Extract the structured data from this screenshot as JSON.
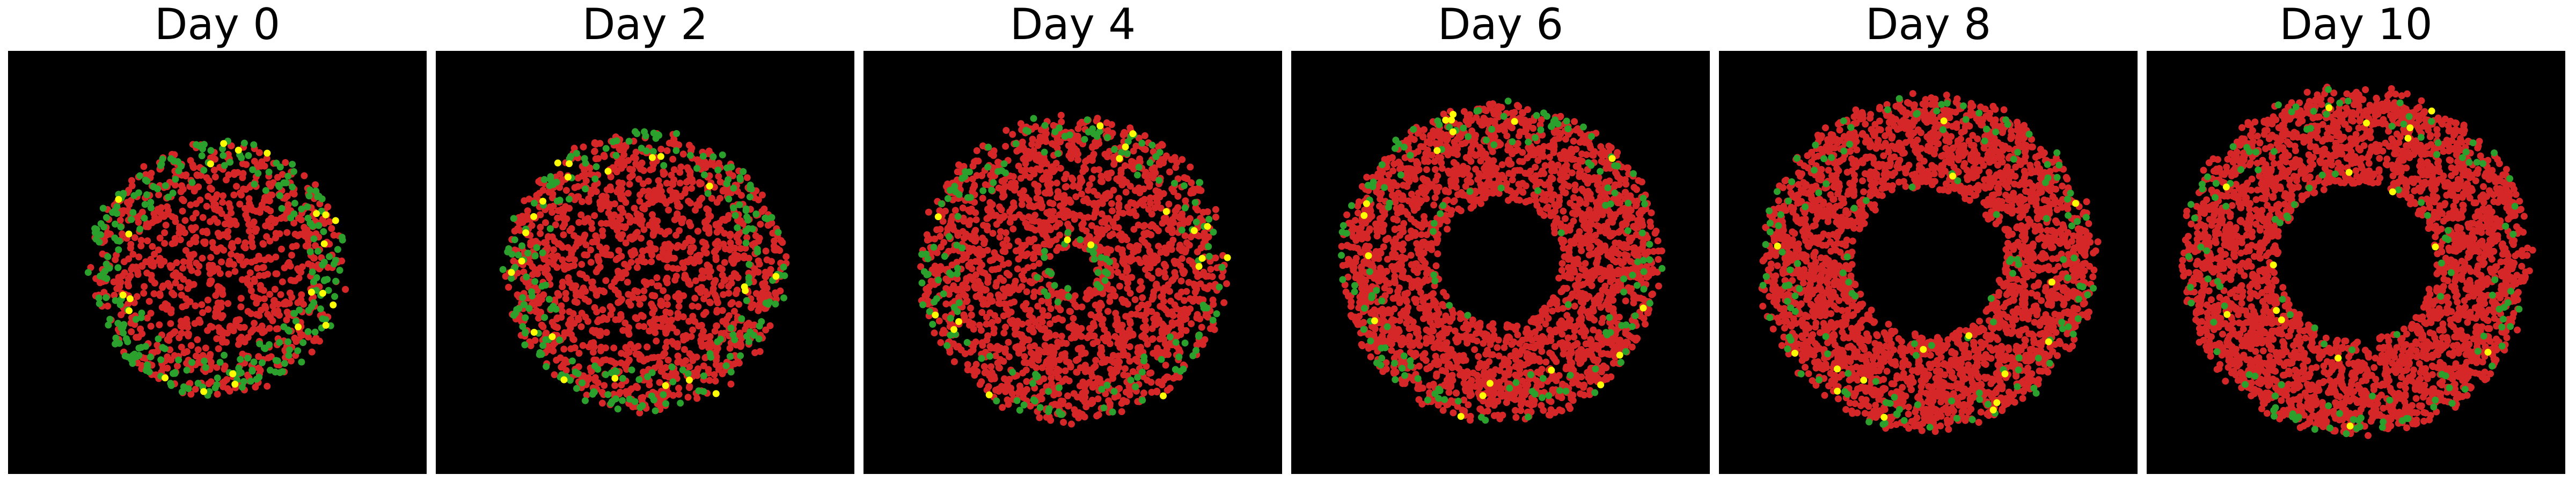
{
  "figure": {
    "background": "#ffffff"
  },
  "chart_data": [
    {
      "type": "scatter",
      "title": "Day 0",
      "background": "#000000",
      "shape": "disk",
      "radius": 0.6,
      "hole_radius": 0.0,
      "center": [
        0.0,
        -0.03
      ],
      "counts": {
        "red": 900,
        "green": 260,
        "yellow": 22
      },
      "colors": {
        "red": "#d62728",
        "green": "#2ca02c",
        "yellow": "#ffff00"
      },
      "grid": false,
      "axes_visible": false
    },
    {
      "type": "scatter",
      "title": "Day 2",
      "background": "#000000",
      "shape": "disk",
      "radius": 0.66,
      "hole_radius": 0.0,
      "center": [
        0.0,
        -0.04
      ],
      "counts": {
        "red": 1400,
        "green": 210,
        "yellow": 22
      },
      "colors": {
        "red": "#d62728",
        "green": "#2ca02c",
        "yellow": "#ffff00"
      },
      "grid": false,
      "axes_visible": false
    },
    {
      "type": "scatter",
      "title": "Day 4",
      "background": "#000000",
      "shape": "disk",
      "radius": 0.72,
      "hole_radius": 0.1,
      "center": [
        0.0,
        -0.03
      ],
      "counts": {
        "red": 1900,
        "green": 180,
        "yellow": 18
      },
      "colors": {
        "red": "#d62728",
        "green": "#2ca02c",
        "yellow": "#ffff00"
      },
      "grid": false,
      "axes_visible": false
    },
    {
      "type": "scatter",
      "title": "Day 6",
      "background": "#000000",
      "shape": "ring",
      "radius": 0.75,
      "hole_radius": 0.3,
      "center": [
        0.0,
        0.0
      ],
      "counts": {
        "red": 2400,
        "green": 150,
        "yellow": 18
      },
      "colors": {
        "red": "#d62728",
        "green": "#2ca02c",
        "yellow": "#ffff00"
      },
      "grid": false,
      "axes_visible": false
    },
    {
      "type": "scatter",
      "title": "Day 8",
      "background": "#000000",
      "shape": "ring",
      "radius": 0.79,
      "hole_radius": 0.36,
      "center": [
        0.0,
        0.0
      ],
      "counts": {
        "red": 2700,
        "green": 140,
        "yellow": 16
      },
      "colors": {
        "red": "#d62728",
        "green": "#2ca02c",
        "yellow": "#ffff00"
      },
      "grid": false,
      "axes_visible": false
    },
    {
      "type": "scatter",
      "title": "Day 10",
      "background": "#000000",
      "shape": "ring",
      "radius": 0.82,
      "hole_radius": 0.38,
      "center": [
        0.0,
        0.0
      ],
      "counts": {
        "red": 2900,
        "green": 130,
        "yellow": 16
      },
      "colors": {
        "red": "#d62728",
        "green": "#2ca02c",
        "yellow": "#ffff00"
      },
      "grid": false,
      "axes_visible": false
    }
  ]
}
